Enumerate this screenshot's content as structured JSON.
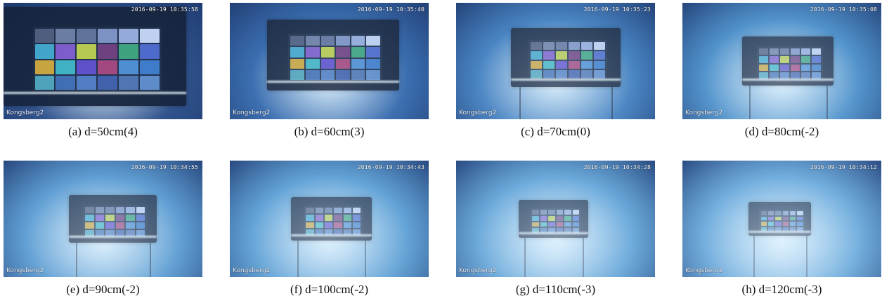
{
  "panels": [
    {
      "caption": "(a) d=50cm(4)",
      "timestamp": "2016-09-19 10:35:58",
      "camera_label": "Kongsberg2",
      "water_color": "#2e4f8a",
      "fog_opacity": 0.05,
      "board_scale": 1.0,
      "board_cx": 0.46,
      "board_cy": 0.46
    },
    {
      "caption": "(b) d=60cm(3)",
      "timestamp": "2016-09-19 10:35:40",
      "camera_label": "Kongsberg2",
      "water_color": "#2f63a8",
      "fog_opacity": 0.18,
      "board_scale": 0.72,
      "board_cx": 0.52,
      "board_cy": 0.45
    },
    {
      "caption": "(c) d=70cm(0)",
      "timestamp": "2016-09-19 10:35:23",
      "camera_label": "Kongsberg2",
      "water_color": "#3775b8",
      "fog_opacity": 0.3,
      "board_scale": 0.6,
      "board_cx": 0.55,
      "board_cy": 0.47
    },
    {
      "caption": "(d) d=80cm(-2)",
      "timestamp": "2016-09-19 10:35:08",
      "camera_label": "Kongsberg2",
      "water_color": "#3c82c0",
      "fog_opacity": 0.38,
      "board_scale": 0.5,
      "board_cx": 0.53,
      "board_cy": 0.5
    },
    {
      "caption": "(e) d=90cm(-2)",
      "timestamp": "2016-09-19 10:34:55",
      "camera_label": "Kongsberg2",
      "water_color": "#4a8ec8",
      "fog_opacity": 0.45,
      "board_scale": 0.48,
      "board_cx": 0.55,
      "board_cy": 0.5
    },
    {
      "caption": "(f) d=100cm(-2)",
      "timestamp": "2016-09-19 10:34:43",
      "camera_label": "Kongsberg2",
      "water_color": "#4b92cb",
      "fog_opacity": 0.5,
      "board_scale": 0.44,
      "board_cx": 0.51,
      "board_cy": 0.5
    },
    {
      "caption": "(g) d=110cm(-3)",
      "timestamp": "2016-09-19 10:34:28",
      "camera_label": "Kongsberg2",
      "water_color": "#5398cf",
      "fog_opacity": 0.55,
      "board_scale": 0.38,
      "board_cx": 0.49,
      "board_cy": 0.5
    },
    {
      "caption": "(h) d=120cm(-3)",
      "timestamp": "2016-09-19 10:34:12",
      "camera_label": "Kongsberg2",
      "water_color": "#5a9dd2",
      "fog_opacity": 0.6,
      "board_scale": 0.34,
      "board_cx": 0.49,
      "board_cy": 0.5
    }
  ],
  "chart_patch_colors": [
    "#4e5a7a",
    "#6a7aa0",
    "#5e6f98",
    "#7a8fc0",
    "#93a8d8",
    "#c0d0f0",
    "#3fa3c8",
    "#7a58c8",
    "#b6c84a",
    "#6a3a7a",
    "#3aa07a",
    "#4a66c8",
    "#c8a23a",
    "#3ab0c0",
    "#5a4ac8",
    "#a0407a",
    "#4a8ad0",
    "#3a78c8",
    "#4aa0b8",
    "#3a6ab0",
    "#4a78c0",
    "#3a5aa8",
    "#4a70b0",
    "#5a88c8"
  ]
}
